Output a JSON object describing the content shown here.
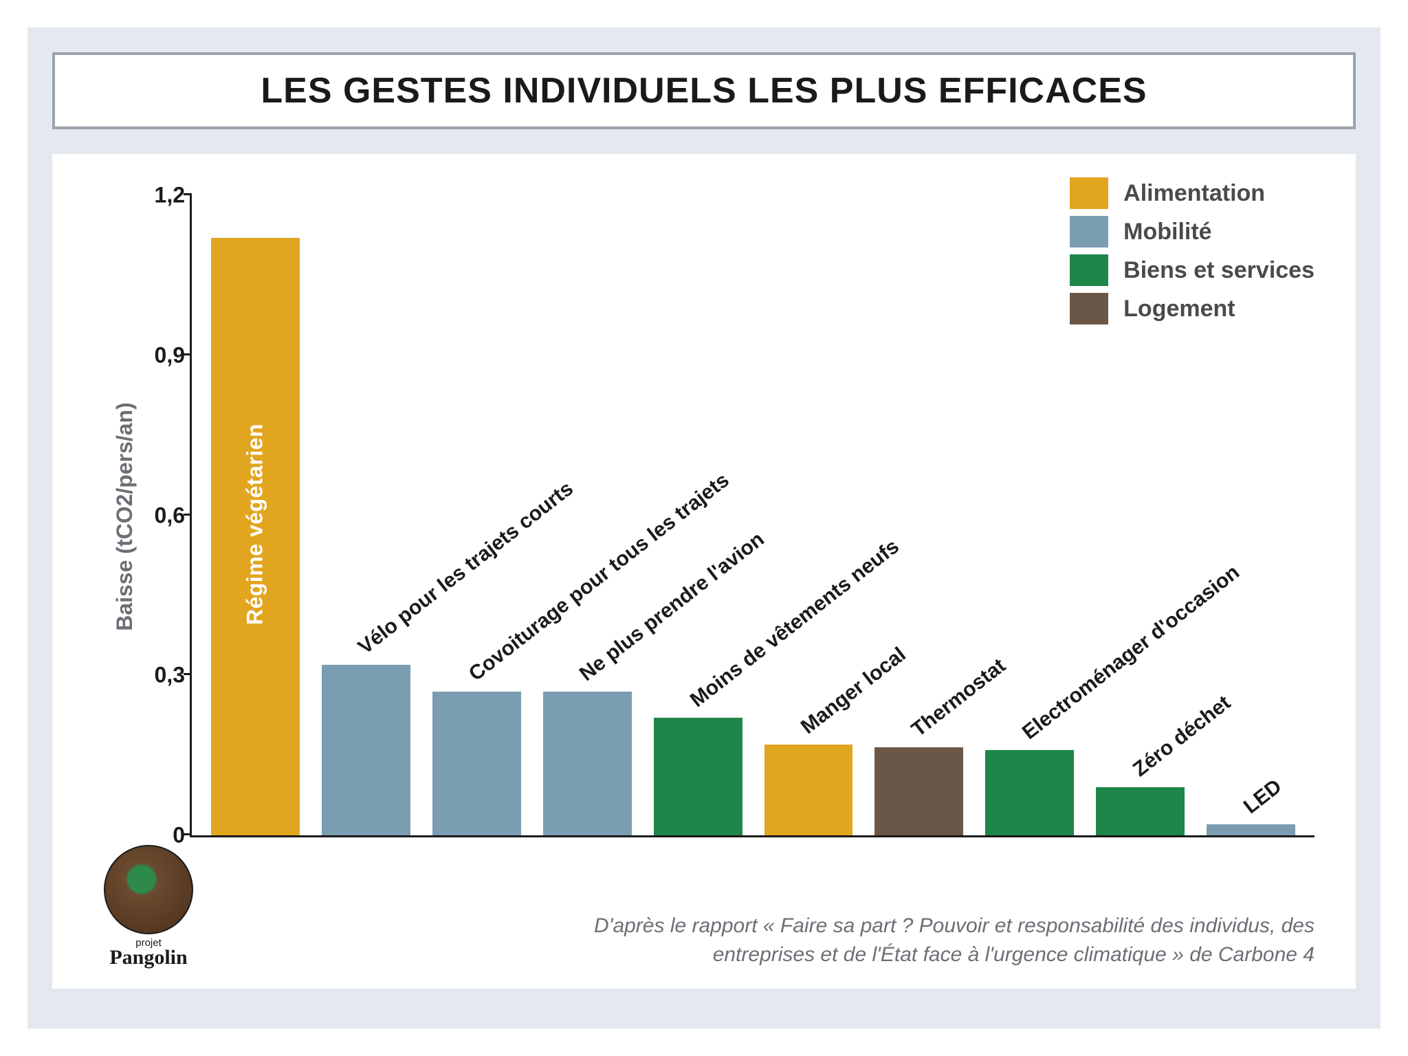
{
  "title": "LES GESTES INDIVIDUELS LES PLUS EFFICACES",
  "chart": {
    "type": "bar",
    "y_axis_label": "Baisse (tCO2/pers/an)",
    "ylim": [
      0,
      1.2
    ],
    "yticks": [
      "0",
      "0,3",
      "0,6",
      "0,9",
      "1,2"
    ],
    "ytick_values": [
      0,
      0.3,
      0.6,
      0.9,
      1.2
    ],
    "axis_color": "#1a1a1a",
    "background_color": "#ffffff",
    "panel_bg": "#e3e9ef",
    "label_rotation_deg": -38,
    "label_fontsize": 30,
    "tick_fontsize": 32,
    "categories": {
      "alimentation": {
        "label": "Alimentation",
        "color": "#e2a51f"
      },
      "mobilite": {
        "label": "Mobilité",
        "color": "#7a9db2"
      },
      "biens": {
        "label": "Biens et services",
        "color": "#1e8649"
      },
      "logement": {
        "label": "Logement",
        "color": "#6b5748"
      }
    },
    "legend_order": [
      "alimentation",
      "mobilite",
      "biens",
      "logement"
    ],
    "bars": [
      {
        "label": "Régime végétarien",
        "value": 1.12,
        "category": "alimentation",
        "label_inside": true
      },
      {
        "label": "Vélo pour  les trajets courts",
        "value": 0.32,
        "category": "mobilite",
        "label_inside": false
      },
      {
        "label": "Covoiturage  pour tous les trajets",
        "value": 0.27,
        "category": "mobilite",
        "label_inside": false
      },
      {
        "label": "Ne plus  prendre l'avion",
        "value": 0.27,
        "category": "mobilite",
        "label_inside": false
      },
      {
        "label": "Moins de vêtements neufs",
        "value": 0.22,
        "category": "biens",
        "label_inside": false
      },
      {
        "label": "Manger local",
        "value": 0.17,
        "category": "alimentation",
        "label_inside": false
      },
      {
        "label": "Thermostat",
        "value": 0.165,
        "category": "logement",
        "label_inside": false
      },
      {
        "label": "Electroménager d'occasion",
        "value": 0.16,
        "category": "biens",
        "label_inside": false
      },
      {
        "label": "Zéro déchet",
        "value": 0.09,
        "category": "biens",
        "label_inside": false
      },
      {
        "label": "LED",
        "value": 0.02,
        "category": "mobilite",
        "label_inside": false
      }
    ]
  },
  "source_line1": "D'après le rapport « Faire sa part ? Pouvoir et responsabilité des individus, des",
  "source_line2": "entreprises et de l'État face à l'urgence climatique » de Carbone 4",
  "logo": {
    "small": "projet",
    "name": "Pangolin"
  }
}
